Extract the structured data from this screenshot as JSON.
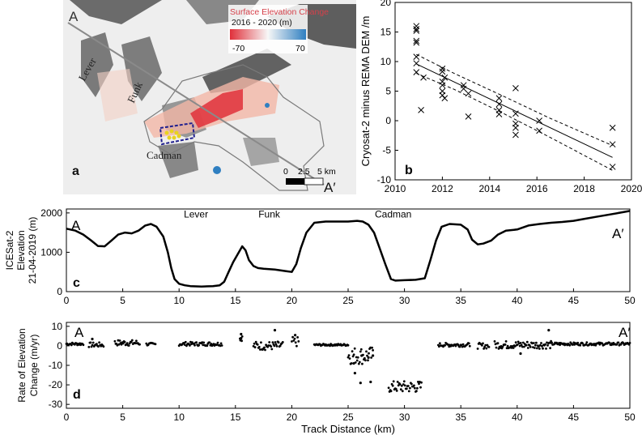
{
  "panel_a": {
    "panel_label": "a",
    "corner_start": "A",
    "corner_end": "A′",
    "legend_title_1": "Surface Elevation Change",
    "legend_title_2": "2016 - 2020 (m)",
    "legend_min": "-70",
    "legend_max": "70",
    "glacier_lever": "Lever",
    "glacier_funk": "Funk",
    "glacier_cadman": "Cadman",
    "scale_0": "0",
    "scale_mid": "2.5",
    "scale_end": "5 km",
    "colors": {
      "negative": "#e0303a",
      "positive": "#2f7fc1",
      "outline": "#7a7a7a",
      "box": "#1f1f8f",
      "points": "#e8d21e"
    }
  },
  "chart_data": [
    {
      "type": "scatter",
      "panel_label": "b",
      "xlabel": "",
      "ylabel": "Cryosat-2 minus REMA DEM /m",
      "xlim": [
        2010,
        2020
      ],
      "ylim": [
        -10,
        20
      ],
      "xticks": [
        2010,
        2012,
        2014,
        2016,
        2018,
        2020
      ],
      "yticks": [
        -10,
        -5,
        0,
        5,
        10,
        15,
        20
      ],
      "marker": "x",
      "points": [
        [
          2010.9,
          16.0
        ],
        [
          2010.9,
          15.5
        ],
        [
          2010.9,
          15.2
        ],
        [
          2010.9,
          13.5
        ],
        [
          2010.9,
          13.2
        ],
        [
          2010.9,
          10.8
        ],
        [
          2010.9,
          9.7
        ],
        [
          2010.9,
          8.2
        ],
        [
          2011.1,
          1.8
        ],
        [
          2011.2,
          7.3
        ],
        [
          2012.0,
          8.8
        ],
        [
          2012.0,
          8.3
        ],
        [
          2012.0,
          6.6
        ],
        [
          2012.0,
          6.0
        ],
        [
          2012.0,
          5.0
        ],
        [
          2012.0,
          4.3
        ],
        [
          2012.1,
          3.8
        ],
        [
          2012.1,
          7.3
        ],
        [
          2012.9,
          6.0
        ],
        [
          2012.9,
          5.4
        ],
        [
          2013.1,
          4.6
        ],
        [
          2013.1,
          0.7
        ],
        [
          2014.4,
          3.8
        ],
        [
          2014.4,
          2.8
        ],
        [
          2014.4,
          1.8
        ],
        [
          2014.4,
          1.1
        ],
        [
          2015.1,
          5.5
        ],
        [
          2015.1,
          1.2
        ],
        [
          2015.1,
          -0.5
        ],
        [
          2015.1,
          -1.2
        ],
        [
          2015.1,
          -2.4
        ],
        [
          2016.1,
          0.0
        ],
        [
          2016.1,
          -1.7
        ],
        [
          2019.2,
          -1.2
        ],
        [
          2019.2,
          -4.0
        ],
        [
          2019.2,
          -7.8
        ]
      ],
      "fit_line": [
        [
          2010.9,
          9.6
        ],
        [
          2019.2,
          -6.2
        ]
      ],
      "confidence_upper": [
        [
          2010.9,
          11.2
        ],
        [
          2012.5,
          8.0
        ],
        [
          2014.5,
          4.3
        ],
        [
          2016.5,
          0.5
        ],
        [
          2019.2,
          -4.2
        ]
      ],
      "confidence_lower": [
        [
          2010.9,
          8.0
        ],
        [
          2012.5,
          5.3
        ],
        [
          2014.5,
          1.4
        ],
        [
          2016.5,
          -2.7
        ],
        [
          2019.2,
          -8.4
        ]
      ],
      "grid": false
    },
    {
      "type": "line",
      "panel_label": "c",
      "corner_start": "A",
      "corner_end": "A′",
      "ylabel": "ICESat-2 Elevation 21-04-2019 (m)",
      "ylabel_lines": [
        "ICESat-2",
        "Elevation",
        "21-04-2019 (m)"
      ],
      "xlabel": "",
      "xlim": [
        0,
        50
      ],
      "ylim": [
        0,
        2100
      ],
      "xticks": [
        0,
        5,
        10,
        15,
        20,
        25,
        30,
        35,
        40,
        45,
        50
      ],
      "yticks": [
        0,
        1000,
        2000
      ],
      "annotations": [
        {
          "text": "Lever",
          "x": 11.5,
          "y": 1880
        },
        {
          "text": "Funk",
          "x": 18.0,
          "y": 1880
        },
        {
          "text": "Cadman",
          "x": 29.0,
          "y": 1880
        }
      ],
      "x": [
        0,
        0.8,
        1.5,
        2.2,
        2.8,
        3.4,
        4.0,
        4.6,
        5.2,
        5.8,
        6.4,
        7.0,
        7.5,
        8.0,
        8.6,
        9.0,
        9.3,
        9.6,
        10.0,
        10.5,
        11.0,
        12.0,
        13.0,
        13.6,
        14.0,
        14.4,
        14.8,
        15.2,
        15.6,
        15.9,
        16.2,
        16.6,
        17.0,
        17.5,
        18.5,
        19.5,
        20.0,
        20.4,
        20.8,
        21.3,
        22.0,
        23.0,
        24.0,
        25.0,
        25.8,
        26.3,
        26.8,
        27.3,
        27.8,
        28.3,
        28.8,
        29.2,
        30.0,
        31.0,
        31.8,
        32.3,
        32.8,
        33.3,
        34.0,
        35.0,
        35.6,
        36.0,
        36.5,
        37.0,
        37.7,
        38.3,
        39.0,
        40.0,
        41.0,
        42.0,
        43.0,
        44.0,
        45.0,
        46.0,
        47.0,
        48.0,
        49.0,
        50.0
      ],
      "values": [
        1600,
        1550,
        1450,
        1300,
        1160,
        1150,
        1300,
        1450,
        1500,
        1480,
        1550,
        1680,
        1720,
        1650,
        1400,
        1000,
        600,
        320,
        200,
        160,
        140,
        130,
        140,
        160,
        250,
        500,
        750,
        950,
        1150,
        1050,
        800,
        650,
        600,
        580,
        560,
        520,
        500,
        700,
        1100,
        1500,
        1750,
        1780,
        1780,
        1780,
        1800,
        1780,
        1700,
        1500,
        1100,
        700,
        320,
        280,
        290,
        300,
        340,
        800,
        1300,
        1650,
        1720,
        1700,
        1580,
        1320,
        1200,
        1220,
        1300,
        1450,
        1550,
        1580,
        1680,
        1720,
        1750,
        1770,
        1800,
        1850,
        1900,
        1950,
        2000,
        2050
      ],
      "grid": false
    },
    {
      "type": "scatter",
      "panel_label": "d",
      "corner_start": "A",
      "corner_end": "A′",
      "ylabel": "Rate of Elevation Change (m/yr)",
      "ylabel_lines": [
        "Rate of Elevation",
        "Change (m/yr)"
      ],
      "xlabel": "Track Distance (km)",
      "xlim": [
        0,
        50
      ],
      "ylim": [
        -32,
        12
      ],
      "xticks": [
        0,
        5,
        10,
        15,
        20,
        25,
        30,
        35,
        40,
        45,
        50
      ],
      "yticks": [
        -30,
        -20,
        -10,
        0,
        10
      ],
      "segments": [
        {
          "x_start": 0.0,
          "x_end": 1.5,
          "mean": 1.0,
          "spread": 1.5
        },
        {
          "x_start": 2.0,
          "x_end": 3.3,
          "mean": 0.5,
          "spread": 2.5
        },
        {
          "x_start": 4.3,
          "x_end": 6.5,
          "mean": 1.5,
          "spread": 3.0
        },
        {
          "x_start": 7.1,
          "x_end": 7.9,
          "mean": 0.8,
          "spread": 1.5
        },
        {
          "x_start": 10.0,
          "x_end": 13.8,
          "mean": 1.0,
          "spread": 2.0
        },
        {
          "x_start": 15.4,
          "x_end": 15.6,
          "mean": 4.0,
          "spread": 3.0
        },
        {
          "x_start": 16.6,
          "x_end": 19.2,
          "mean": 0.0,
          "spread": 4.5
        },
        {
          "x_start": 20.0,
          "x_end": 20.6,
          "mean": 2.0,
          "spread": 5.0
        },
        {
          "x_start": 22.0,
          "x_end": 25.0,
          "mean": 0.5,
          "spread": 1.0
        },
        {
          "x_start": 25.0,
          "x_end": 27.2,
          "mean": -5.0,
          "spread": 9.0
        },
        {
          "x_start": 28.6,
          "x_end": 31.5,
          "mean": -21.0,
          "spread": 6.0
        },
        {
          "x_start": 33.0,
          "x_end": 35.8,
          "mean": 0.5,
          "spread": 2.0
        },
        {
          "x_start": 36.5,
          "x_end": 37.5,
          "mean": 0.0,
          "spread": 3.0
        },
        {
          "x_start": 38.0,
          "x_end": 43.0,
          "mean": 0.5,
          "spread": 4.0
        },
        {
          "x_start": 43.0,
          "x_end": 50.0,
          "mean": 1.0,
          "spread": 1.5
        }
      ],
      "outliers": [
        [
          2.3,
          3.5
        ],
        [
          15.5,
          6.0
        ],
        [
          18.5,
          8.0
        ],
        [
          20.3,
          5.5
        ],
        [
          25.5,
          -9.0
        ],
        [
          25.6,
          -14.0
        ],
        [
          26.2,
          -5.0
        ],
        [
          26.8,
          -6.0
        ],
        [
          27.2,
          -5.0
        ],
        [
          26.1,
          -19.0
        ],
        [
          27.0,
          -18.5
        ],
        [
          40.3,
          -4.0
        ],
        [
          42.8,
          8.0
        ]
      ],
      "grid": false
    }
  ]
}
